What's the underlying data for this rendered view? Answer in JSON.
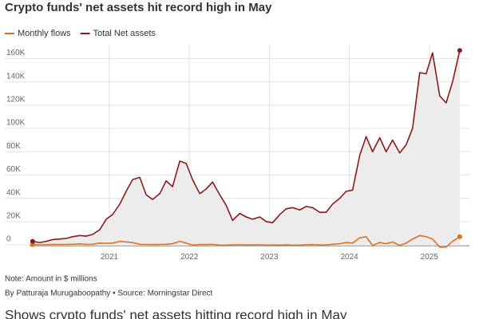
{
  "chart_data": {
    "type": "line",
    "title": "Crypto funds' net assets hit record high in May",
    "note": "Note: Amount in $ millions",
    "source": "By Patturaja Murugaboopathy • Source: Morningstar Direct",
    "caption": "Shows crypto funds' net assets hitting record high in May",
    "x": [
      2020.04,
      2020.13,
      2020.21,
      2020.29,
      2020.38,
      2020.46,
      2020.54,
      2020.63,
      2020.71,
      2020.79,
      2020.88,
      2020.96,
      2021.04,
      2021.13,
      2021.21,
      2021.29,
      2021.38,
      2021.46,
      2021.54,
      2021.63,
      2021.71,
      2021.79,
      2021.88,
      2021.96,
      2022.04,
      2022.13,
      2022.21,
      2022.29,
      2022.38,
      2022.46,
      2022.54,
      2022.63,
      2022.71,
      2022.79,
      2022.88,
      2022.96,
      2023.04,
      2023.13,
      2023.21,
      2023.29,
      2023.38,
      2023.46,
      2023.54,
      2023.63,
      2023.71,
      2023.79,
      2023.88,
      2023.96,
      2024.04,
      2024.13,
      2024.21,
      2024.29,
      2024.38,
      2024.46,
      2024.54,
      2024.63,
      2024.71,
      2024.79,
      2024.88,
      2024.96,
      2025.04,
      2025.13,
      2025.21,
      2025.29,
      2025.38
    ],
    "series": [
      {
        "name": "Monthly flows",
        "color": "#e07020",
        "values": [
          200,
          100,
          100,
          300,
          300,
          300,
          500,
          800,
          400,
          500,
          1500,
          1300,
          1500,
          3000,
          2500,
          2000,
          500,
          300,
          200,
          300,
          500,
          1000,
          3000,
          1500,
          -200,
          300,
          200,
          400,
          -300,
          -200,
          0,
          100,
          0,
          -100,
          100,
          -200,
          -100,
          -200,
          0,
          -300,
          -200,
          100,
          200,
          -100,
          0,
          500,
          1000,
          2000,
          1500,
          6000,
          7000,
          -500,
          2000,
          1000,
          2500,
          -500,
          1500,
          5000,
          8000,
          7000,
          5000,
          -2000,
          -2000,
          3000,
          7000
        ]
      },
      {
        "name": "Total Net assets",
        "color": "#8b1a1a",
        "values": [
          3000,
          2000,
          3000,
          4500,
          5000,
          5500,
          7000,
          8000,
          7500,
          9000,
          13000,
          22000,
          26000,
          35000,
          46000,
          56000,
          58000,
          43000,
          39000,
          44000,
          55000,
          50000,
          72000,
          70000,
          56000,
          44000,
          48000,
          54000,
          43000,
          34000,
          21000,
          27000,
          24000,
          22000,
          24000,
          20000,
          19000,
          26000,
          31000,
          32000,
          30000,
          33000,
          32000,
          28000,
          28000,
          35000,
          40000,
          46000,
          47000,
          77000,
          93000,
          80000,
          92000,
          80000,
          90000,
          79000,
          86000,
          100000,
          148000,
          147000,
          165000,
          128000,
          122000,
          140000,
          167000
        ]
      }
    ],
    "xlim": [
      2020.0,
      2025.5
    ],
    "xticks": [
      2021,
      2022,
      2023,
      2024,
      2025
    ],
    "ylim": [
      -3000,
      172000
    ],
    "yticks": [
      0,
      {
        "value": 20000,
        "label": "20K"
      },
      {
        "value": 40000,
        "label": "40K"
      },
      {
        "value": 60000,
        "label": "60K"
      },
      {
        "value": 80000,
        "label": "80K"
      },
      {
        "value": 100000,
        "label": "100K"
      },
      {
        "value": 120000,
        "label": "120K"
      },
      {
        "value": 140000,
        "label": "140K"
      },
      {
        "value": 160000,
        "label": "160K"
      }
    ],
    "grid": true
  }
}
